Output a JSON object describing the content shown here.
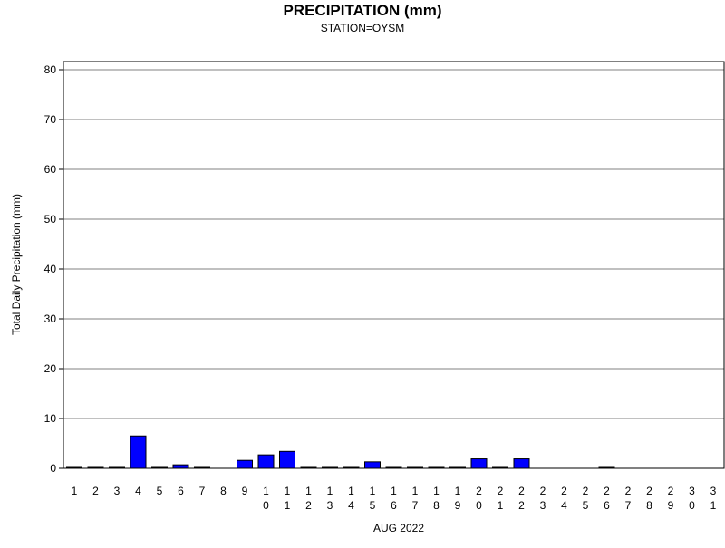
{
  "chart_data": {
    "type": "bar",
    "title": "PRECIPITATION (mm)",
    "subtitle": "STATION=OYSM",
    "xlabel": "AUG 2022",
    "ylabel": "Total Daily Precipitation (mm)",
    "ylim": [
      0,
      80
    ],
    "yticks": [
      "0",
      "10",
      "20",
      "30",
      "40",
      "50",
      "60",
      "70",
      "80"
    ],
    "grid": true,
    "categories": [
      "1",
      "2",
      "3",
      "4",
      "5",
      "6",
      "7",
      "8",
      "9",
      "10",
      "11",
      "12",
      "13",
      "14",
      "15",
      "16",
      "17",
      "18",
      "19",
      "20",
      "21",
      "22",
      "23",
      "24",
      "25",
      "26",
      "27",
      "28",
      "29",
      "30",
      "31"
    ],
    "values": [
      0.1,
      0.1,
      0.1,
      6.5,
      0.1,
      0.7,
      0.1,
      null,
      1.6,
      2.7,
      3.4,
      0.1,
      0.1,
      0.1,
      1.3,
      0.1,
      0.1,
      0.1,
      0.1,
      1.9,
      0.1,
      1.9,
      null,
      null,
      null,
      0.1,
      null,
      null,
      null,
      null,
      null
    ],
    "bar_color": "#0000ff"
  }
}
